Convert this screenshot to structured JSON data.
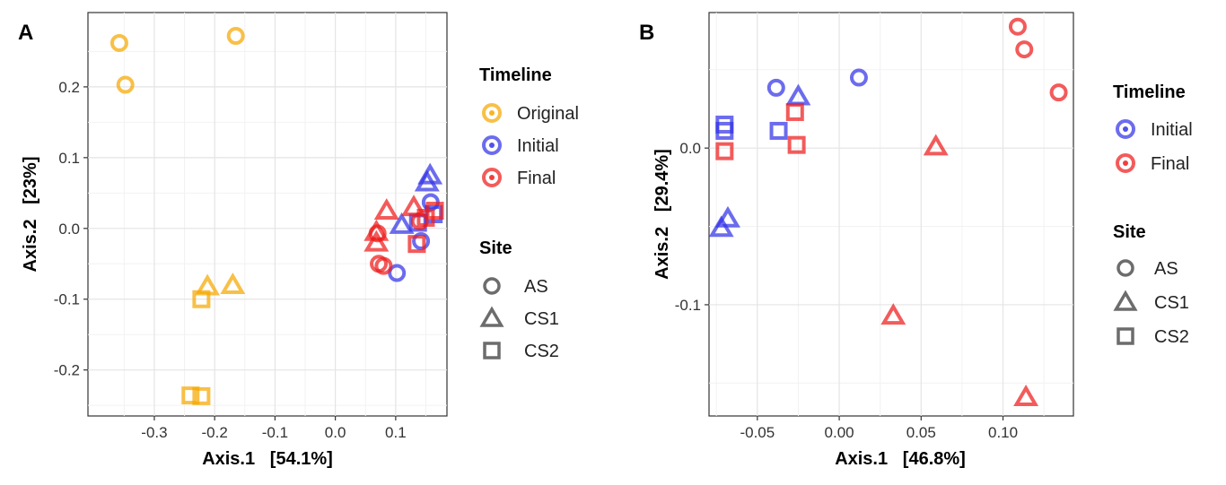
{
  "chart_data": [
    {
      "panel": "A",
      "type": "scatter",
      "xlabel": "Axis.1   [54.1%]",
      "ylabel": "Axis.2   [23%]",
      "xlim": [
        -0.41,
        0.185
      ],
      "ylim": [
        -0.265,
        0.305
      ],
      "xticks": [
        -0.3,
        -0.2,
        -0.1,
        0.0,
        0.1
      ],
      "xtick_labels": [
        "-0.3",
        "-0.2",
        "-0.1",
        "0.0",
        "0.1"
      ],
      "yticks": [
        -0.2,
        -0.1,
        0.0,
        0.1,
        0.2
      ],
      "ytick_labels": [
        "-0.2",
        "-0.1",
        "0.0",
        "0.1",
        "0.2"
      ],
      "legend": {
        "timeline_title": "Timeline",
        "timeline": [
          {
            "label": "Original",
            "color": "#F5A800"
          },
          {
            "label": "Initial",
            "color": "#3333E8"
          },
          {
            "label": "Final",
            "color": "#EE1C1C"
          }
        ],
        "site_title": "Site",
        "site": [
          {
            "label": "AS",
            "shape": "circle"
          },
          {
            "label": "CS1",
            "shape": "triangle"
          },
          {
            "label": "CS2",
            "shape": "square"
          }
        ]
      },
      "points": [
        {
          "x": -0.358,
          "y": 0.262,
          "timeline": "Original",
          "site": "AS"
        },
        {
          "x": -0.165,
          "y": 0.272,
          "timeline": "Original",
          "site": "AS"
        },
        {
          "x": -0.348,
          "y": 0.203,
          "timeline": "Original",
          "site": "AS"
        },
        {
          "x": -0.212,
          "y": -0.082,
          "timeline": "Original",
          "site": "CS1"
        },
        {
          "x": -0.17,
          "y": -0.08,
          "timeline": "Original",
          "site": "CS1"
        },
        {
          "x": -0.222,
          "y": -0.1,
          "timeline": "Original",
          "site": "CS2"
        },
        {
          "x": -0.24,
          "y": -0.236,
          "timeline": "Original",
          "site": "CS2"
        },
        {
          "x": -0.222,
          "y": -0.237,
          "timeline": "Original",
          "site": "CS2"
        },
        {
          "x": 0.157,
          "y": 0.075,
          "timeline": "Initial",
          "site": "CS1"
        },
        {
          "x": 0.152,
          "y": 0.065,
          "timeline": "Initial",
          "site": "CS1"
        },
        {
          "x": 0.11,
          "y": 0.005,
          "timeline": "Initial",
          "site": "CS1"
        },
        {
          "x": 0.158,
          "y": 0.037,
          "timeline": "Initial",
          "site": "AS"
        },
        {
          "x": 0.142,
          "y": -0.018,
          "timeline": "Initial",
          "site": "AS"
        },
        {
          "x": 0.102,
          "y": -0.063,
          "timeline": "Initial",
          "site": "AS"
        },
        {
          "x": 0.163,
          "y": 0.02,
          "timeline": "Initial",
          "site": "CS2"
        },
        {
          "x": 0.137,
          "y": 0.008,
          "timeline": "Initial",
          "site": "CS2"
        },
        {
          "x": 0.085,
          "y": 0.025,
          "timeline": "Final",
          "site": "CS1"
        },
        {
          "x": 0.068,
          "y": -0.005,
          "timeline": "Final",
          "site": "CS1"
        },
        {
          "x": 0.068,
          "y": -0.02,
          "timeline": "Final",
          "site": "CS1"
        },
        {
          "x": 0.13,
          "y": 0.03,
          "timeline": "Final",
          "site": "CS1"
        },
        {
          "x": 0.07,
          "y": -0.007,
          "timeline": "Final",
          "site": "AS"
        },
        {
          "x": 0.072,
          "y": -0.05,
          "timeline": "Final",
          "site": "AS"
        },
        {
          "x": 0.08,
          "y": -0.053,
          "timeline": "Final",
          "site": "AS"
        },
        {
          "x": 0.14,
          "y": 0.01,
          "timeline": "Final",
          "site": "AS"
        },
        {
          "x": 0.135,
          "y": -0.022,
          "timeline": "Final",
          "site": "CS2"
        },
        {
          "x": 0.165,
          "y": 0.025,
          "timeline": "Final",
          "site": "CS2"
        },
        {
          "x": 0.15,
          "y": 0.015,
          "timeline": "Final",
          "site": "CS2"
        }
      ]
    },
    {
      "panel": "B",
      "type": "scatter",
      "xlabel": "Axis.1   [46.8%]",
      "ylabel": "Axis.2   [29.4%]",
      "xlim": [
        -0.0795,
        0.143
      ],
      "ylim": [
        -0.171,
        0.0865
      ],
      "xticks": [
        -0.05,
        0.0,
        0.05,
        0.1
      ],
      "xtick_labels": [
        "-0.05",
        "0.00",
        "0.05",
        "0.10"
      ],
      "yticks": [
        -0.1,
        0.0
      ],
      "ytick_labels": [
        "-0.1",
        "0.0"
      ],
      "legend": {
        "timeline_title": "Timeline",
        "timeline": [
          {
            "label": "Initial",
            "color": "#3333E8"
          },
          {
            "label": "Final",
            "color": "#EE1C1C"
          }
        ],
        "site_title": "Site",
        "site": [
          {
            "label": "AS",
            "shape": "circle"
          },
          {
            "label": "CS1",
            "shape": "triangle"
          },
          {
            "label": "CS2",
            "shape": "square"
          }
        ]
      },
      "points": [
        {
          "x": -0.0385,
          "y": 0.0385,
          "timeline": "Initial",
          "site": "AS"
        },
        {
          "x": 0.012,
          "y": 0.045,
          "timeline": "Initial",
          "site": "AS"
        },
        {
          "x": -0.025,
          "y": 0.033,
          "timeline": "Initial",
          "site": "CS1"
        },
        {
          "x": -0.072,
          "y": -0.051,
          "timeline": "Initial",
          "site": "CS1"
        },
        {
          "x": -0.068,
          "y": -0.045,
          "timeline": "Initial",
          "site": "CS1"
        },
        {
          "x": -0.07,
          "y": 0.015,
          "timeline": "Initial",
          "site": "CS2"
        },
        {
          "x": -0.07,
          "y": 0.011,
          "timeline": "Initial",
          "site": "CS2"
        },
        {
          "x": -0.037,
          "y": 0.011,
          "timeline": "Initial",
          "site": "CS2"
        },
        {
          "x": 0.109,
          "y": 0.0775,
          "timeline": "Final",
          "site": "AS"
        },
        {
          "x": 0.113,
          "y": 0.063,
          "timeline": "Final",
          "site": "AS"
        },
        {
          "x": 0.134,
          "y": 0.0355,
          "timeline": "Final",
          "site": "AS"
        },
        {
          "x": 0.059,
          "y": 0.001,
          "timeline": "Final",
          "site": "CS1"
        },
        {
          "x": 0.033,
          "y": -0.107,
          "timeline": "Final",
          "site": "CS1"
        },
        {
          "x": 0.114,
          "y": -0.159,
          "timeline": "Final",
          "site": "CS1"
        },
        {
          "x": -0.027,
          "y": 0.023,
          "timeline": "Final",
          "site": "CS2"
        },
        {
          "x": -0.026,
          "y": 0.002,
          "timeline": "Final",
          "site": "CS2"
        },
        {
          "x": -0.07,
          "y": -0.002,
          "timeline": "Final",
          "site": "CS2"
        }
      ]
    }
  ]
}
